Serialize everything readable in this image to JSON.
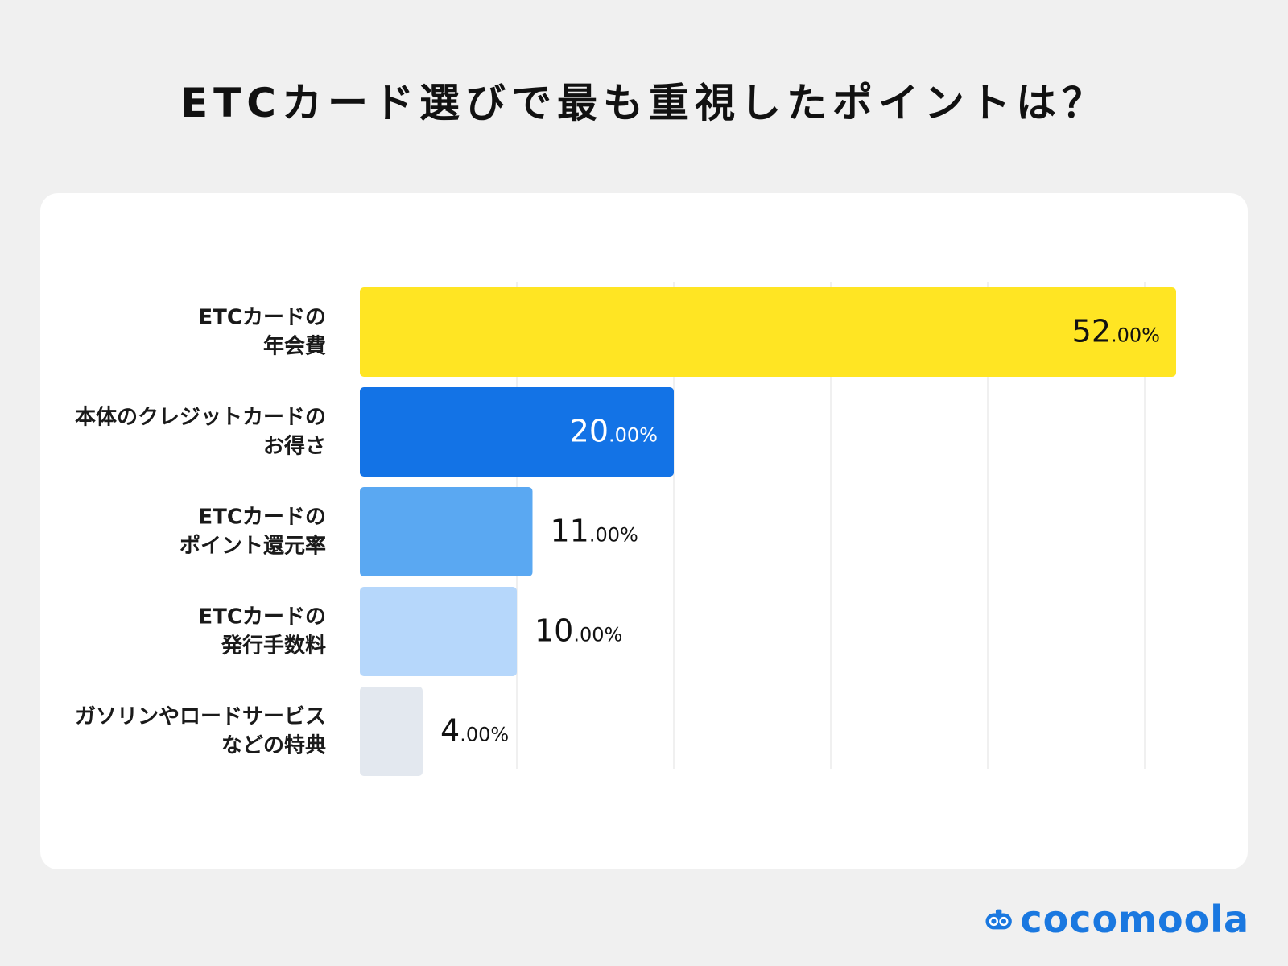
{
  "title": "ETCカード選びで最も重視したポイントは？",
  "brand": {
    "name": "cocomoola",
    "color": "#1a78e0"
  },
  "chart_data": {
    "type": "bar",
    "orientation": "horizontal",
    "title": "ETCカード選びで最も重視したポイントは？",
    "categories": [
      [
        "ETCカードの",
        "年会費"
      ],
      [
        "本体のクレジットカードの",
        "お得さ"
      ],
      [
        "ETCカードの",
        "ポイント還元率"
      ],
      [
        "ETCカードの",
        "発行手数料"
      ],
      [
        "ガソリンやロードサービス",
        "などの特典"
      ]
    ],
    "values": [
      52,
      20,
      11,
      10,
      4
    ],
    "value_labels": [
      {
        "main": "52",
        "suffix": ".00%"
      },
      {
        "main": "20",
        "suffix": ".00%"
      },
      {
        "main": "11",
        "suffix": ".00%"
      },
      {
        "main": "10",
        "suffix": ".00%"
      },
      {
        "main": "4",
        "suffix": ".00%"
      }
    ],
    "colors": [
      "#ffe523",
      "#1373e6",
      "#5aa8f2",
      "#b6d7fb",
      "#e3e8ef"
    ],
    "xlim": [
      0,
      60
    ],
    "grid": true,
    "xlabel": "",
    "ylabel": ""
  }
}
